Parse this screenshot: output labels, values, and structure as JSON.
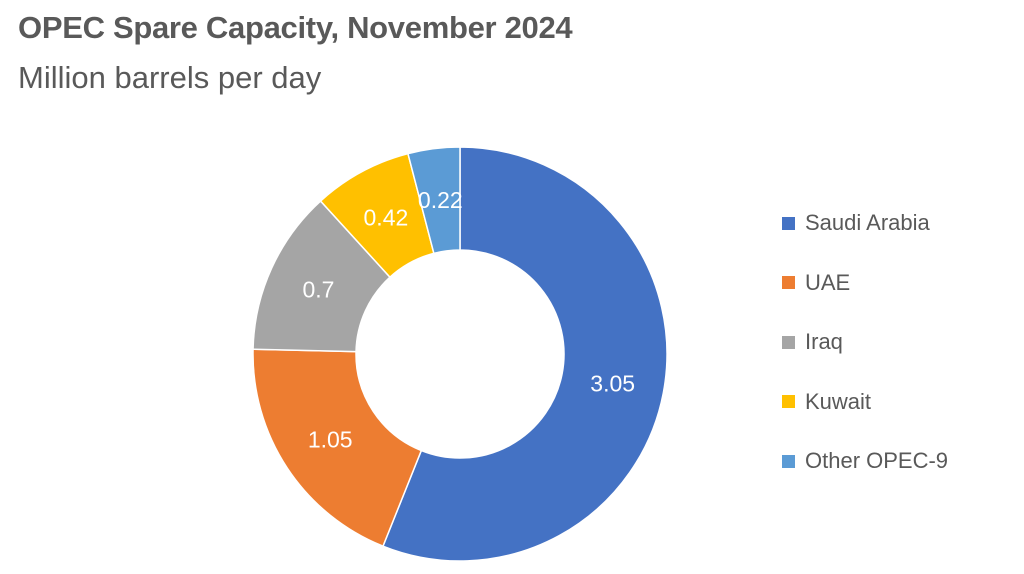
{
  "chart_data": {
    "type": "pie",
    "title": "OPEC Spare Capacity, November 2024",
    "subtitle": "Million barrels per day",
    "categories": [
      "Saudi Arabia",
      "UAE",
      "Iraq",
      "Kuwait",
      "Other OPEC-9"
    ],
    "values": [
      3.05,
      1.05,
      0.7,
      0.42,
      0.22
    ],
    "data_labels": [
      "3.05",
      "1.05",
      "0.7",
      "0.42",
      "0.22"
    ],
    "colors": [
      "#4472C4",
      "#ED7D31",
      "#A5A5A5",
      "#FFC000",
      "#5B9BD5"
    ],
    "legend_position": "right",
    "donut": true
  }
}
